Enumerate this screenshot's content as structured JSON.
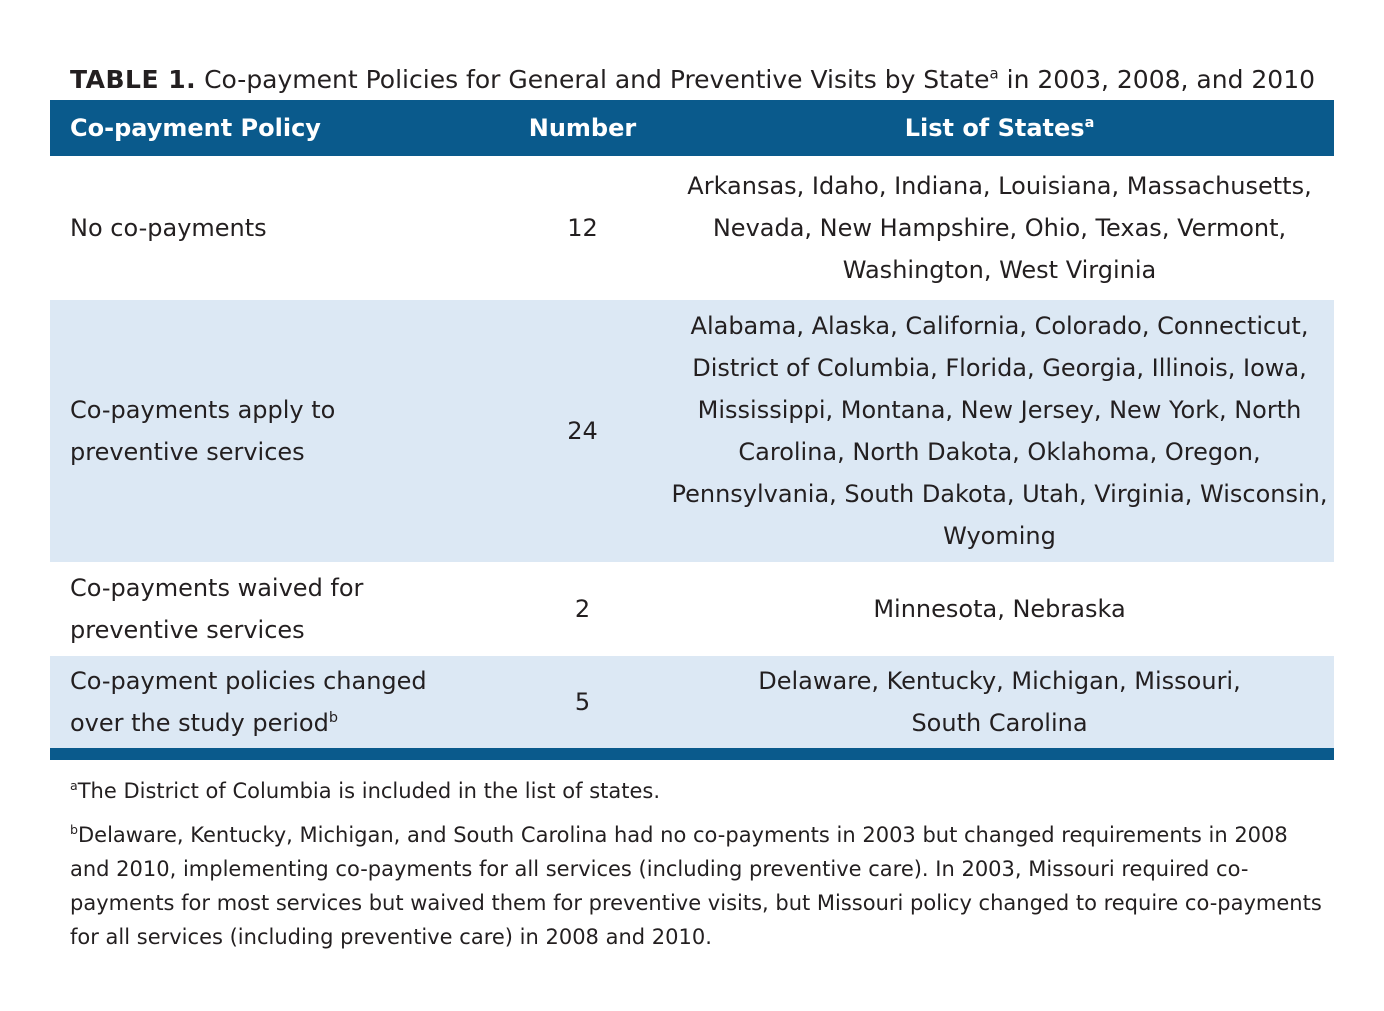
{
  "caption": {
    "label": "TABLE 1.",
    "text": "Co-payment Policies for General and Preventive Visits by State",
    "sup": "a",
    "suffix": "in 2003, 2008, and 2010"
  },
  "table": {
    "headers": {
      "policy": "Co-payment Policy",
      "number": "Number",
      "states": "List of States",
      "states_sup": "a"
    },
    "rows": [
      {
        "policy": "No co-payments",
        "policy_sup": "",
        "number": "12",
        "states": "Arkansas, Idaho, Indiana, Louisiana, Massachusetts, Nevada, New Hampshire, Ohio, Texas, Vermont, Washington, West Virginia"
      },
      {
        "policy": "Co-payments apply to preventive services",
        "policy_sup": "",
        "number": "24",
        "states": "Alabama, Alaska, California, Colorado, Connecticut, District of Columbia, Florida, Georgia, Illinois, Iowa, Mississippi, Montana, New Jersey, New York, North Carolina, North Dakota, Oklahoma, Oregon, Pennsylvania, South Dakota, Utah, Virginia, Wisconsin, Wyoming"
      },
      {
        "policy": "Co-payments waived for preventive services",
        "policy_sup": "",
        "number": "2",
        "states": "Minnesota, Nebraska"
      },
      {
        "policy": "Co-payment policies changed over the study period",
        "policy_sup": "b",
        "number": "5",
        "states": "Delaware, Kentucky, Michigan, Missouri, South Carolina"
      }
    ]
  },
  "footnotes": [
    {
      "marker": "a",
      "text": "The District of Columbia is included in the list of states."
    },
    {
      "marker": "b",
      "text": "Delaware, Kentucky, Michigan, and South Carolina had no co-payments in 2003 but changed requirements in 2008 and 2010, implementing co-payments for all services (including preventive care). In 2003, Missouri required co-payments for most services but waived them for preventive visits, but Missouri policy changed to require co-payments for all services (including preventive care) in 2008 and 2010."
    }
  ],
  "colors": {
    "header_bg": "#0a5a8c",
    "band_bg": "#dce8f4",
    "text": "#231f20"
  }
}
